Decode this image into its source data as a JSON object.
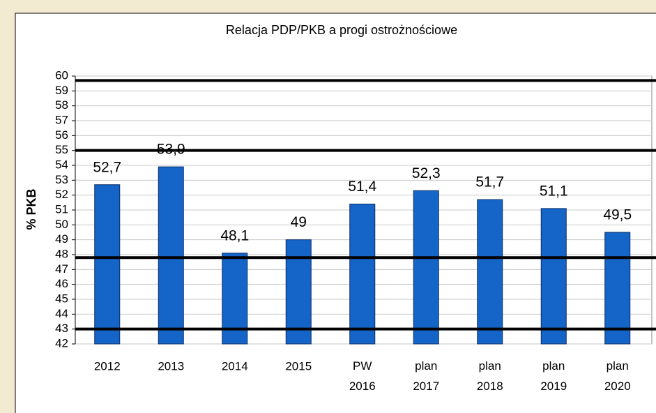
{
  "chart_data": {
    "type": "bar",
    "title": "Relacja PDP/PKB a progi ostrożnościowe",
    "y_axis_label": "% PKB",
    "categories": [
      "2012",
      "2013",
      "2014",
      "2015",
      "PW 2016",
      "plan 2017",
      "plan 2018",
      "plan 2019",
      "plan 2020"
    ],
    "values": [
      52.7,
      53.9,
      48.1,
      49,
      51.4,
      52.3,
      51.7,
      51.1,
      49.5
    ],
    "value_labels": [
      "52,7",
      "53,9",
      "48,1",
      "49",
      "51,4",
      "52,3",
      "51,7",
      "51,1",
      "49,5"
    ],
    "color": "#1565c8",
    "ylim": [
      42,
      60
    ],
    "yticks": [
      42,
      43,
      44,
      45,
      46,
      47,
      48,
      49,
      50,
      51,
      52,
      53,
      54,
      55,
      56,
      57,
      58,
      59,
      60
    ],
    "grid": true,
    "reference_lines": [
      43,
      47.8,
      55,
      59.7
    ]
  }
}
